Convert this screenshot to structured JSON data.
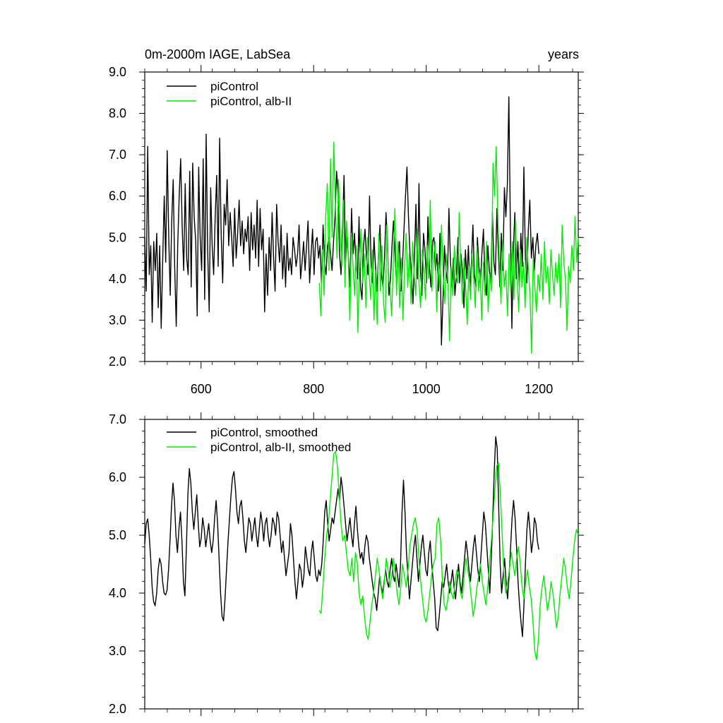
{
  "colors": {
    "control": "#000000",
    "alb": "#00ee00",
    "background": "#ffffff"
  },
  "chart_data": [
    {
      "type": "line",
      "title_left": "0m-2000m IAGE, LabSea",
      "title_right": "years",
      "xlim": [
        500,
        1270
      ],
      "ylim": [
        2.0,
        9.0
      ],
      "xticks": [
        600,
        800,
        1000,
        1200
      ],
      "xtick_labels": [
        "600",
        "800",
        "1000",
        "1200"
      ],
      "yticks": [
        2.0,
        3.0,
        4.0,
        5.0,
        6.0,
        7.0,
        8.0,
        9.0
      ],
      "ytick_labels": [
        "2.0",
        "3.0",
        "4.0",
        "5.0",
        "6.0",
        "7.0",
        "8.0",
        "9.0"
      ],
      "legend_position": "top-left",
      "series": [
        {
          "name": "piControl",
          "color": "#000000",
          "x_start": 500,
          "x_end": 1200,
          "values": [
            5.0,
            3.7,
            7.2,
            4.1,
            4.8,
            2.95,
            4.9,
            4.2,
            5.1,
            3.3,
            4.8,
            2.8,
            4.5,
            6.0,
            4.4,
            7.1,
            5.0,
            3.6,
            5.4,
            6.4,
            4.3,
            2.85,
            4.8,
            6.0,
            6.9,
            5.2,
            4.2,
            6.3,
            4.5,
            4.1,
            6.6,
            3.8,
            6.8,
            5.5,
            4.9,
            3.1,
            6.7,
            5.0,
            4.2,
            6.9,
            3.5,
            7.5,
            4.7,
            3.2,
            6.2,
            4.8,
            4.1,
            5.5,
            6.5,
            4.3,
            7.4,
            5.1,
            3.9,
            5.8,
            5.3,
            6.4,
            4.8,
            5.6,
            5.0,
            4.3,
            5.7,
            4.5,
            5.1,
            5.9,
            4.8,
            5.4,
            4.6,
            5.2,
            4.9,
            5.5,
            4.2,
            5.6,
            4.7,
            5.3,
            4.5,
            5.9,
            4.3,
            5.7,
            4.7,
            5.2,
            3.2,
            4.6,
            3.6,
            5.0,
            4.2,
            5.6,
            4.5,
            3.7,
            5.8,
            4.9,
            4.4,
            5.3,
            4.0,
            4.8,
            3.8,
            5.1,
            4.2,
            4.5,
            4.1,
            5.0,
            4.7,
            4.3,
            4.6,
            5.3,
            4.0,
            4.4,
            4.9,
            4.2,
            4.8,
            5.4,
            3.9,
            4.6,
            5.2,
            4.1,
            4.9,
            5.0,
            4.5,
            4.8,
            3.9,
            5.3,
            4.4,
            4.1,
            4.8,
            5.0,
            4.6,
            4.2,
            4.9,
            5.5,
            6.6,
            6.1,
            4.6,
            4.1,
            5.3,
            6.5,
            4.4,
            5.0,
            4.5,
            3.8,
            5.7,
            4.6,
            5.1,
            4.3,
            4.0,
            5.5,
            3.8,
            3.5,
            4.8,
            5.2,
            4.5,
            4.1,
            6.0,
            4.4,
            3.9,
            5.0,
            4.3,
            3.7,
            4.6,
            5.3,
            4.1,
            3.8,
            4.5,
            5.6,
            4.9,
            3.6,
            4.0,
            4.8,
            5.4,
            4.6,
            3.9,
            4.5,
            4.9,
            3.7,
            4.3,
            5.2,
            6.0,
            6.7,
            5.5,
            4.6,
            4.1,
            3.4,
            4.5,
            5.8,
            4.0,
            6.3,
            4.2,
            3.6,
            5.1,
            4.7,
            3.9,
            5.5,
            4.3,
            3.8,
            4.9,
            5.0,
            4.2,
            4.6,
            3.7,
            5.1,
            2.4,
            3.5,
            4.8,
            4.2,
            3.9,
            5.7,
            4.4,
            3.8,
            4.5,
            3.6,
            4.1,
            5.0,
            3.9,
            4.6,
            4.2,
            3.3,
            4.7,
            4.0,
            4.8,
            3.7,
            4.4,
            5.3,
            4.1,
            3.8,
            5.0,
            4.3,
            3.9,
            4.6,
            5.2,
            4.0,
            3.6,
            4.8,
            4.2,
            3.9,
            5.6,
            4.4,
            4.1,
            5.7,
            4.6,
            3.8,
            5.1,
            4.2,
            6.2,
            5.5,
            6.3,
            8.4,
            5.2,
            2.8,
            4.7,
            5.6,
            4.0,
            4.9,
            3.8,
            5.1,
            4.3,
            6.7,
            4.5,
            3.9,
            5.2,
            5.9,
            4.5,
            5.0,
            4.2,
            4.8,
            5.1,
            4.6
          ]
        },
        {
          "name": "piControl, alb-II",
          "color": "#00ee00",
          "x_start": 810,
          "x_end": 1270,
          "values": [
            3.9,
            3.1,
            4.7,
            3.6,
            5.5,
            6.3,
            4.2,
            6.9,
            5.0,
            7.3,
            5.8,
            4.5,
            6.4,
            5.2,
            4.3,
            5.9,
            3.8,
            5.4,
            4.6,
            3.0,
            5.1,
            4.3,
            3.6,
            4.8,
            2.7,
            4.4,
            5.2,
            3.9,
            4.6,
            3.3,
            5.0,
            4.1,
            3.5,
            4.7,
            3.0,
            4.2,
            2.9,
            5.1,
            3.7,
            4.8,
            3.4,
            2.95,
            5.3,
            4.0,
            3.8,
            3.1,
            4.4,
            5.7,
            3.6,
            4.9,
            3.3,
            4.5,
            3.0,
            4.2,
            5.1,
            3.8,
            4.6,
            3.4,
            4.9,
            4.1,
            3.6,
            5.2,
            3.9,
            3.3,
            4.7,
            4.2,
            3.5,
            4.8,
            4.0,
            5.9,
            3.7,
            4.5,
            4.9,
            3.2,
            4.4,
            3.8,
            5.3,
            4.1,
            3.4,
            4.6,
            3.9,
            2.5,
            4.3,
            3.6,
            4.8,
            4.1,
            3.9,
            5.6,
            4.2,
            3.4,
            4.5,
            3.8,
            2.9,
            4.3,
            3.5,
            4.6,
            4.0,
            3.3,
            4.8,
            3.7,
            4.2,
            3.0,
            4.4,
            3.6,
            4.9,
            3.2,
            4.1,
            3.7,
            6.8,
            6.0,
            7.2,
            5.5,
            4.3,
            3.4,
            4.9,
            3.8,
            4.2,
            3.1,
            4.6,
            3.7,
            4.9,
            3.5,
            5.4,
            4.0,
            3.2,
            4.7,
            3.8,
            4.4,
            3.3,
            5.0,
            4.2,
            3.6,
            2.2,
            4.5,
            3.8,
            3.2,
            4.1,
            3.7,
            4.6,
            3.5,
            4.9,
            3.9,
            4.3,
            3.4,
            4.7,
            4.1,
            3.6,
            4.4,
            3.9,
            4.6,
            3.3,
            5.3,
            4.4,
            4.0,
            2.75,
            4.3,
            3.9,
            4.8,
            4.2,
            5.5,
            4.4,
            5.0
          ]
        }
      ]
    },
    {
      "type": "line",
      "xlim": [
        500,
        1270
      ],
      "ylim": [
        2.0,
        7.0
      ],
      "xticks": [
        600,
        800,
        1000,
        1200
      ],
      "yticks": [
        2.0,
        3.0,
        4.0,
        5.0,
        6.0,
        7.0
      ],
      "ytick_labels": [
        "2.0",
        "3.0",
        "4.0",
        "5.0",
        "6.0",
        "7.0"
      ],
      "legend_position": "top-left",
      "series": [
        {
          "name": "piControl, smoothed",
          "color": "#000000",
          "x_start": 500,
          "x_end": 1200,
          "values": [
            4.85,
            5.2,
            5.28,
            5.0,
            4.6,
            4.1,
            3.85,
            3.78,
            4.0,
            4.4,
            4.6,
            4.5,
            4.2,
            4.0,
            3.97,
            4.05,
            4.4,
            4.9,
            5.5,
            5.9,
            5.6,
            5.0,
            4.7,
            5.1,
            5.4,
            4.9,
            4.2,
            3.95,
            4.8,
            5.7,
            6.15,
            5.9,
            5.4,
            5.1,
            5.4,
            5.7,
            5.2,
            4.8,
            4.95,
            5.3,
            5.1,
            4.8,
            5.0,
            5.2,
            4.9,
            4.7,
            4.9,
            5.3,
            5.6,
            5.2,
            4.6,
            4.0,
            3.6,
            3.52,
            3.9,
            4.4,
            4.9,
            5.3,
            5.7,
            6.0,
            6.1,
            5.8,
            5.4,
            5.2,
            5.5,
            5.6,
            5.3,
            4.9,
            4.7,
            5.0,
            5.3,
            5.2,
            4.9,
            5.1,
            5.3,
            5.0,
            4.8,
            5.1,
            5.4,
            5.2,
            4.9,
            5.2,
            5.3,
            5.0,
            4.8,
            5.0,
            5.3,
            5.2,
            5.0,
            5.4,
            5.3,
            5.0,
            4.7,
            4.9,
            4.6,
            4.3,
            4.5,
            4.7,
            5.2,
            5.0,
            4.6,
            4.2,
            3.9,
            4.2,
            4.5,
            4.4,
            4.1,
            4.3,
            4.8,
            4.6,
            4.4,
            4.3,
            4.7,
            4.9,
            4.6,
            4.3,
            4.2,
            4.4,
            4.3,
            4.5,
            4.9,
            5.4,
            5.6,
            5.2,
            4.9,
            5.1,
            5.3,
            5.2,
            5.4,
            5.6,
            5.8,
            5.6,
            6.0,
            5.8,
            5.5,
            5.2,
            4.9,
            5.1,
            5.3,
            5.0,
            4.8,
            5.2,
            5.5,
            5.1,
            4.8,
            4.6,
            4.7,
            4.5,
            4.8,
            5.0,
            4.9,
            4.6,
            4.4,
            4.2,
            4.0,
            3.9,
            3.7,
            4.0,
            4.3,
            4.1,
            4.0,
            4.2,
            4.4,
            4.2,
            4.1,
            4.4,
            4.6,
            4.3,
            4.2,
            4.5,
            4.3,
            4.1,
            4.5,
            5.4,
            5.95,
            5.4,
            4.7,
            4.3,
            3.9,
            4.2,
            4.5,
            4.8,
            5.0,
            4.6,
            4.2,
            4.5,
            4.8,
            5.0,
            4.7,
            4.4,
            4.3,
            4.7,
            4.9,
            4.5,
            4.2,
            3.9,
            3.4,
            3.35,
            3.6,
            3.9,
            4.2,
            4.1,
            4.3,
            4.5,
            4.2,
            4.0,
            4.2,
            4.4,
            4.1,
            3.9,
            4.2,
            4.5,
            4.2,
            4.0,
            4.3,
            4.6,
            4.9,
            4.7,
            4.4,
            4.2,
            4.5,
            4.8,
            5.0,
            4.7,
            4.4,
            4.2,
            4.6,
            5.0,
            5.4,
            5.2,
            4.8,
            4.4,
            4.0,
            4.6,
            5.3,
            6.1,
            6.7,
            6.5,
            5.5,
            4.5,
            4.0,
            4.3,
            4.6,
            4.2,
            3.9,
            4.3,
            4.8,
            5.3,
            5.6,
            5.3,
            4.8,
            4.2,
            3.8,
            3.5,
            3.25,
            3.8,
            4.5,
            5.1,
            5.4,
            5.1,
            4.7,
            4.9,
            5.3,
            5.2,
            4.9,
            4.75
          ]
        },
        {
          "name": "piControl, alb-II, smoothed",
          "color": "#00ee00",
          "x_start": 810,
          "x_end": 1270,
          "values": [
            3.7,
            3.65,
            4.1,
            4.6,
            5.0,
            5.2,
            5.6,
            6.0,
            6.4,
            6.45,
            6.2,
            5.7,
            5.2,
            4.9,
            5.0,
            4.7,
            4.4,
            4.3,
            4.6,
            4.2,
            4.7,
            4.5,
            4.0,
            3.8,
            3.95,
            3.6,
            3.3,
            3.2,
            3.5,
            3.8,
            4.0,
            4.3,
            4.6,
            4.4,
            4.1,
            3.9,
            4.2,
            4.6,
            4.4,
            4.1,
            4.3,
            4.6,
            4.3,
            4.0,
            3.8,
            4.1,
            4.5,
            4.3,
            4.1,
            4.4,
            4.8,
            5.0,
            5.2,
            5.3,
            5.1,
            4.6,
            4.2,
            3.9,
            3.6,
            3.5,
            3.7,
            4.0,
            4.3,
            4.5,
            4.6,
            5.2,
            5.3,
            4.9,
            4.2,
            3.8,
            3.7,
            3.9,
            4.2,
            4.0,
            3.9,
            4.2,
            4.4,
            4.3,
            4.0,
            3.9,
            4.3,
            4.6,
            4.4,
            4.2,
            3.9,
            3.6,
            3.8,
            4.1,
            4.3,
            4.5,
            4.2,
            4.0,
            3.8,
            4.1,
            4.5,
            4.9,
            5.3,
            5.8,
            6.2,
            6.25,
            5.7,
            5.0,
            4.3,
            4.0,
            4.2,
            4.4,
            4.7,
            4.5,
            4.3,
            4.6,
            4.8,
            4.5,
            4.1,
            3.9,
            4.2,
            4.4,
            4.1,
            3.9,
            3.5,
            3.0,
            2.85,
            3.2,
            3.8,
            4.1,
            4.3,
            4.0,
            3.7,
            3.9,
            4.2,
            4.0,
            3.7,
            3.4,
            3.6,
            4.0,
            4.3,
            4.6,
            4.4,
            4.1,
            3.9,
            4.2,
            4.6,
            4.9,
            5.1,
            5.0
          ]
        }
      ]
    }
  ]
}
